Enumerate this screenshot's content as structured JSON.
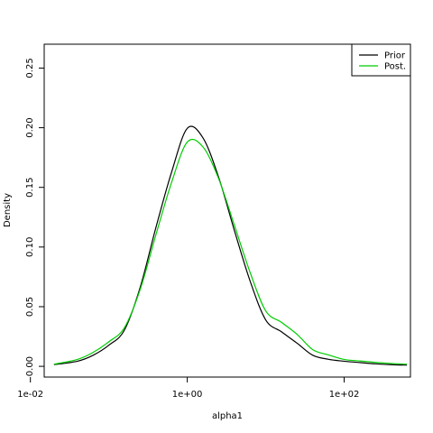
{
  "chart_data": {
    "type": "line",
    "title": "",
    "xlabel": "alpha1",
    "ylabel": "Density",
    "x_scale": "log",
    "xlim": [
      0.015,
      700
    ],
    "ylim": [
      -0.009,
      0.27
    ],
    "x_ticks": [
      {
        "value": 0.01,
        "label": "1e-02"
      },
      {
        "value": 1,
        "label": "1e+00"
      },
      {
        "value": 100,
        "label": "1e+02"
      }
    ],
    "y_ticks": [
      {
        "value": 0.0,
        "label": "0.00"
      },
      {
        "value": 0.05,
        "label": "0.05"
      },
      {
        "value": 0.1,
        "label": "0.10"
      },
      {
        "value": 0.15,
        "label": "0.15"
      },
      {
        "value": 0.2,
        "label": "0.20"
      },
      {
        "value": 0.25,
        "label": "0.25"
      }
    ],
    "grid": false,
    "legend_position": "top-right",
    "series": [
      {
        "name": "Prior",
        "color": "#000000",
        "x": [
          0.02,
          0.0398,
          0.0631,
          0.1,
          0.158,
          0.251,
          0.398,
          0.631,
          1,
          1.585,
          2.512,
          3.981,
          6.31,
          10,
          15.85,
          25.12,
          39.81,
          63.1,
          100,
          158.5,
          251.2,
          398.1,
          631
        ],
        "y": [
          0.0014,
          0.0043,
          0.0093,
          0.0177,
          0.0304,
          0.0662,
          0.1163,
          0.1628,
          0.1995,
          0.1915,
          0.1584,
          0.114,
          0.0717,
          0.0389,
          0.029,
          0.0194,
          0.0093,
          0.0059,
          0.0043,
          0.0032,
          0.0021,
          0.0014,
          0.001
        ]
      },
      {
        "name": "Post.",
        "color": "#00cd00",
        "x": [
          0.02,
          0.0398,
          0.0631,
          0.1,
          0.158,
          0.251,
          0.398,
          0.631,
          1,
          1.585,
          2.512,
          3.981,
          6.31,
          10,
          15.85,
          25.12,
          39.81,
          63.1,
          100,
          158.5,
          251.2,
          398.1,
          631
        ],
        "y": [
          0.0018,
          0.0058,
          0.0117,
          0.0206,
          0.0324,
          0.0644,
          0.1102,
          0.1542,
          0.188,
          0.1839,
          0.1573,
          0.1184,
          0.0789,
          0.0465,
          0.0369,
          0.0268,
          0.014,
          0.0096,
          0.0058,
          0.0045,
          0.0033,
          0.0024,
          0.0018
        ]
      }
    ]
  }
}
